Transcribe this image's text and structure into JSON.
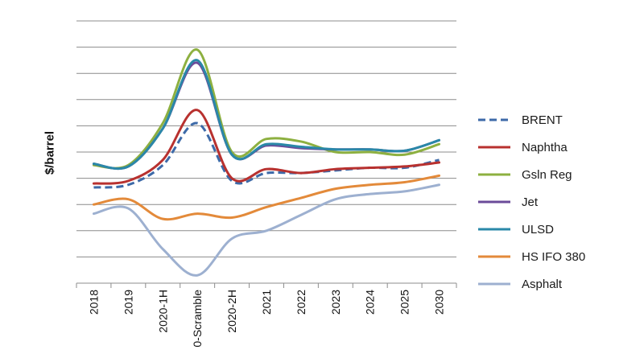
{
  "chart_data": {
    "type": "line",
    "title": "",
    "xlabel": "",
    "ylabel": "$/barrel",
    "ylim": [
      0,
      100
    ],
    "grid": true,
    "legend_position": "right",
    "categories": [
      "2018",
      "2019",
      "2020-1H",
      "0-Scramble",
      "2020-2H",
      "2021",
      "2022",
      "2023",
      "2024",
      "2025",
      "2030"
    ],
    "series": [
      {
        "name": "BRENT",
        "color": "#3d6aa8",
        "dashed": true,
        "values": [
          36.5,
          37.5,
          45,
          61,
          39,
          42,
          42,
          43,
          44,
          44,
          47
        ]
      },
      {
        "name": "Naphtha",
        "color": "#b8312f",
        "dashed": false,
        "values": [
          38,
          39,
          47,
          66,
          40,
          43.5,
          42,
          43.5,
          44,
          44.5,
          46
        ]
      },
      {
        "name": "Gsln Reg",
        "color": "#8db040",
        "dashed": false,
        "values": [
          45,
          45,
          61,
          89,
          50,
          55,
          54,
          50,
          50,
          49,
          53
        ]
      },
      {
        "name": "Jet",
        "color": "#6b4b9a",
        "dashed": false,
        "values": [
          45.5,
          44.5,
          59,
          84,
          49,
          52.5,
          51.5,
          51,
          51,
          50.5,
          54.5
        ]
      },
      {
        "name": "ULSD",
        "color": "#2a88a8",
        "dashed": false,
        "values": [
          45.5,
          44.5,
          59,
          85,
          49,
          53,
          52,
          51,
          51,
          50.5,
          54.5
        ]
      },
      {
        "name": "HS IFO 380",
        "color": "#e38a3a",
        "dashed": false,
        "values": [
          30,
          32,
          24.5,
          26.5,
          25,
          29,
          32.5,
          36,
          37.5,
          38.5,
          41
        ]
      },
      {
        "name": "Asphalt",
        "color": "#9db0d0",
        "dashed": false,
        "values": [
          26.5,
          28.5,
          13,
          3,
          17,
          20,
          26,
          32,
          34,
          35,
          37.5
        ]
      }
    ]
  }
}
